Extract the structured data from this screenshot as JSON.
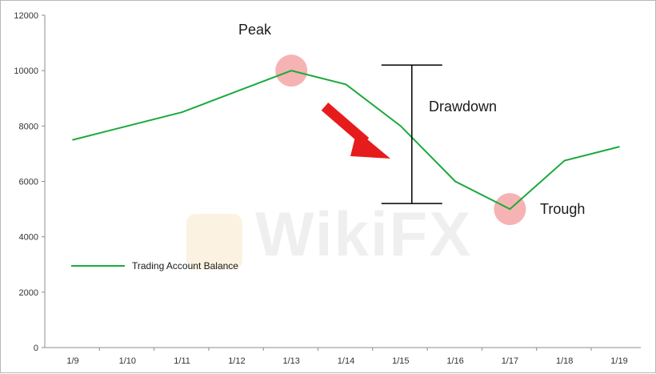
{
  "chart_data": {
    "type": "line",
    "x": [
      "1/9",
      "1/10",
      "1/11",
      "1/12",
      "1/13",
      "1/14",
      "1/15",
      "1/16",
      "1/17",
      "1/18",
      "1/19"
    ],
    "series": [
      {
        "name": "Trading Account Balance",
        "values": [
          7500,
          8000,
          8500,
          9250,
          10000,
          9500,
          8000,
          6000,
          5000,
          6750,
          7250
        ],
        "color": "#1aaa3c"
      }
    ],
    "ylim": [
      0,
      12000
    ],
    "yticks": [
      0,
      2000,
      4000,
      6000,
      8000,
      10000,
      12000
    ],
    "grid": false,
    "legend": "lower-left",
    "title": "",
    "xlabel": "",
    "ylabel": "",
    "annotations": {
      "peak": {
        "label": "Peak",
        "x": "1/13",
        "y": 10000
      },
      "trough": {
        "label": "Trough",
        "x": "1/17",
        "y": 5000
      },
      "drawdown": {
        "label": "Drawdown",
        "x": "1/15",
        "from": 10200,
        "to": 5200
      }
    },
    "marker_color": "#f4a6a6",
    "arrow_color": "#e61c1c"
  },
  "watermark": {
    "text": "WikiFX",
    "color": "#f3d9a8",
    "icon": "wikifx-eagle-logo"
  }
}
